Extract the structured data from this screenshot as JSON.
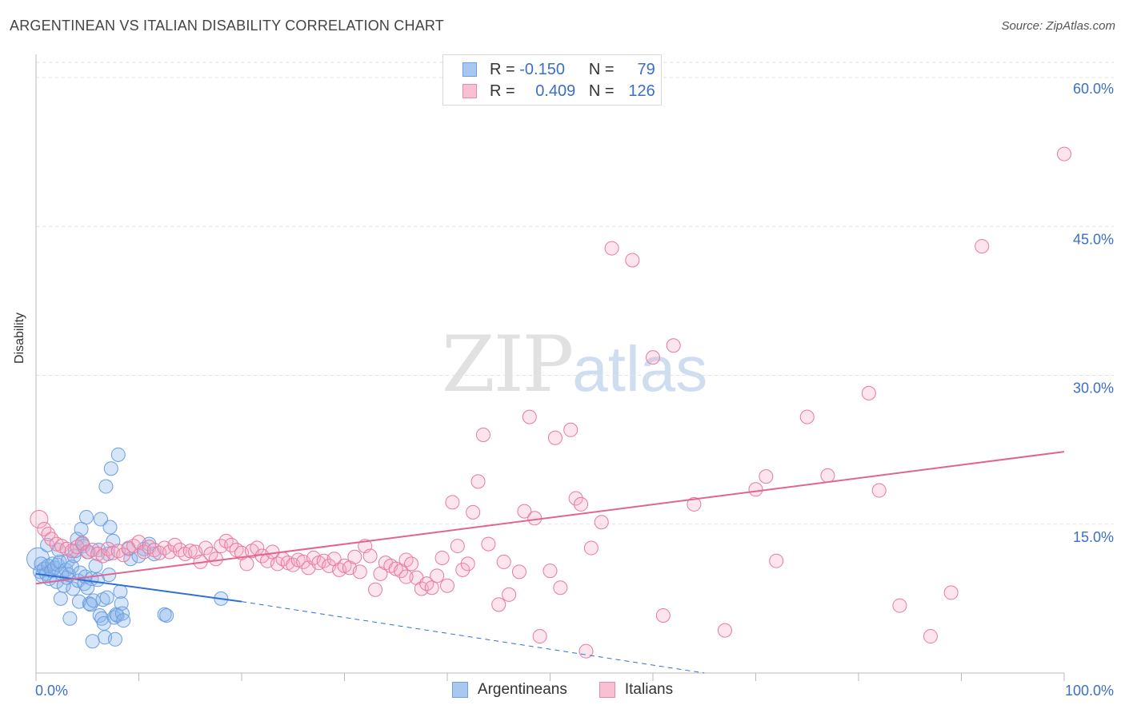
{
  "title": "ARGENTINEAN VS ITALIAN DISABILITY CORRELATION CHART",
  "source": "Source: ZipAtlas.com",
  "watermark": {
    "zip": "ZIP",
    "atlas": "atlas"
  },
  "legend_top": [
    {
      "r_label": "R =",
      "r_value": "-0.150",
      "n_label": "N =",
      "n_value": "79",
      "color": "#a9c8f0",
      "border": "#6a9fe0"
    },
    {
      "r_label": "R =",
      "r_value": "0.409",
      "n_label": "N =",
      "n_value": "126",
      "color": "#f8c0d2",
      "border": "#e88aa8"
    }
  ],
  "legend_bottom": [
    {
      "label": "Argentineans",
      "color": "#a9c8f0",
      "border": "#6a9fe0"
    },
    {
      "label": "Italians",
      "color": "#f8c0d2",
      "border": "#e88aa8"
    }
  ],
  "chart_data": {
    "type": "scatter",
    "title": "ARGENTINEAN VS ITALIAN DISABILITY CORRELATION CHART",
    "xlabel": "",
    "ylabel": "Disability",
    "xlim": [
      0,
      100
    ],
    "ylim": [
      0,
      60
    ],
    "x_tick_labels": [
      "0.0%",
      "100.0%"
    ],
    "y_tick_labels": [
      "15.0%",
      "30.0%",
      "45.0%",
      "60.0%"
    ],
    "y_ticks": [
      15,
      30,
      45,
      60
    ],
    "grid": true,
    "series": [
      {
        "name": "Argentineans",
        "color": "#6a9fe0",
        "fill": "rgba(140,180,235,0.35)",
        "trend": {
          "x0": 0,
          "y0": 10.0,
          "x1": 20,
          "y1": 7.2,
          "dash_to_x": 65,
          "dash_to_y": 0
        },
        "points": [
          [
            0.2,
            11.5
          ],
          [
            0.4,
            10.2
          ],
          [
            0.5,
            11
          ],
          [
            0.6,
            9.8
          ],
          [
            0.8,
            10.5
          ],
          [
            1,
            10
          ],
          [
            1.2,
            10.8
          ],
          [
            1.3,
            9.5
          ],
          [
            1.5,
            10.3
          ],
          [
            1.6,
            11
          ],
          [
            1.8,
            10.6
          ],
          [
            2,
            9.2
          ],
          [
            2.1,
            10.9
          ],
          [
            2.3,
            11.2
          ],
          [
            2.4,
            7.5
          ],
          [
            2.5,
            10
          ],
          [
            2.7,
            8.8
          ],
          [
            2.9,
            10.4
          ],
          [
            3,
            9.6
          ],
          [
            3.1,
            11.3
          ],
          [
            3.2,
            9.9
          ],
          [
            3.3,
            5.5
          ],
          [
            3.5,
            10.7
          ],
          [
            3.6,
            8.5
          ],
          [
            3.7,
            11.8
          ],
          [
            3.8,
            12.3
          ],
          [
            4,
            13.5
          ],
          [
            4.1,
            9.3
          ],
          [
            4.2,
            7.2
          ],
          [
            4.3,
            10.1
          ],
          [
            4.4,
            14.5
          ],
          [
            4.5,
            13
          ],
          [
            4.6,
            12.8
          ],
          [
            4.7,
            9
          ],
          [
            4.8,
            9.7
          ],
          [
            5,
            8.6
          ],
          [
            5.1,
            12.2
          ],
          [
            5.2,
            7
          ],
          [
            5.3,
            6.9
          ],
          [
            5.4,
            9.5
          ],
          [
            5.5,
            3.2
          ],
          [
            5.6,
            7.3
          ],
          [
            5.8,
            10.8
          ],
          [
            6,
            9.4
          ],
          [
            6.1,
            12.4
          ],
          [
            6.2,
            5.8
          ],
          [
            6.3,
            15.5
          ],
          [
            6.4,
            5.5
          ],
          [
            6.5,
            7.4
          ],
          [
            6.6,
            5.0
          ],
          [
            6.7,
            3.6
          ],
          [
            6.8,
            18.8
          ],
          [
            6.9,
            7.6
          ],
          [
            7,
            12
          ],
          [
            7.1,
            9.9
          ],
          [
            7.2,
            14.7
          ],
          [
            7.3,
            20.6
          ],
          [
            7.5,
            13.3
          ],
          [
            7.6,
            5.6
          ],
          [
            7.7,
            3.4
          ],
          [
            7.8,
            5.9
          ],
          [
            7.9,
            5.8
          ],
          [
            8,
            22
          ],
          [
            8.2,
            8.2
          ],
          [
            8.3,
            7
          ],
          [
            8.4,
            6
          ],
          [
            8.5,
            5.3
          ],
          [
            9,
            12.5
          ],
          [
            9.2,
            11.5
          ],
          [
            10,
            11.8
          ],
          [
            10.5,
            12.5
          ],
          [
            11,
            13
          ],
          [
            11.5,
            12
          ],
          [
            12.5,
            5.9
          ],
          [
            12.7,
            5.8
          ],
          [
            18,
            7.5
          ],
          [
            4.9,
            15.7
          ],
          [
            2.2,
            12.4
          ],
          [
            1.1,
            12.9
          ]
        ],
        "sizes": {
          "big_index": 0
        }
      },
      {
        "name": "Italians",
        "color": "#e8799e",
        "fill": "rgba(245,170,195,0.3)",
        "trend": {
          "x0": 0,
          "y0": 9.0,
          "x1": 100,
          "y1": 22.3
        },
        "points": [
          [
            0.3,
            15.5
          ],
          [
            0.8,
            14.5
          ],
          [
            1.2,
            14
          ],
          [
            1.5,
            13.5
          ],
          [
            2,
            13
          ],
          [
            2.5,
            12.8
          ],
          [
            3,
            12.5
          ],
          [
            3.5,
            12.3
          ],
          [
            4,
            12.7
          ],
          [
            4.5,
            13.1
          ],
          [
            5,
            12.2
          ],
          [
            5.5,
            12.4
          ],
          [
            6,
            12
          ],
          [
            6.5,
            11.8
          ],
          [
            7,
            12.5
          ],
          [
            7.5,
            12.1
          ],
          [
            8,
            12.3
          ],
          [
            8.5,
            11.9
          ],
          [
            9,
            12.6
          ],
          [
            9.5,
            12.8
          ],
          [
            10,
            13.2
          ],
          [
            10.5,
            12.2
          ],
          [
            11,
            12.7
          ],
          [
            11.5,
            12.4
          ],
          [
            12,
            12.1
          ],
          [
            12.5,
            12.6
          ],
          [
            13,
            12.2
          ],
          [
            13.5,
            12.9
          ],
          [
            14,
            12.4
          ],
          [
            14.5,
            12
          ],
          [
            15,
            12.3
          ],
          [
            15.5,
            12.2
          ],
          [
            16,
            11.2
          ],
          [
            16.5,
            12.6
          ],
          [
            17,
            12
          ],
          [
            17.5,
            11.5
          ],
          [
            18,
            12.8
          ],
          [
            18.5,
            13.3
          ],
          [
            19,
            12.9
          ],
          [
            19.5,
            12.4
          ],
          [
            20,
            12.1
          ],
          [
            20.5,
            11
          ],
          [
            21,
            12.3
          ],
          [
            21.5,
            12.6
          ],
          [
            22,
            11.8
          ],
          [
            22.5,
            11.3
          ],
          [
            23,
            12.2
          ],
          [
            23.5,
            11
          ],
          [
            24,
            11.5
          ],
          [
            24.5,
            11.1
          ],
          [
            25,
            10.9
          ],
          [
            25.5,
            11.4
          ],
          [
            26,
            11.2
          ],
          [
            26.5,
            10.6
          ],
          [
            27,
            11.6
          ],
          [
            27.5,
            11.1
          ],
          [
            28,
            11.3
          ],
          [
            28.5,
            10.8
          ],
          [
            29,
            11.5
          ],
          [
            29.5,
            10.4
          ],
          [
            30,
            10.8
          ],
          [
            30.5,
            10.6
          ],
          [
            31,
            11.7
          ],
          [
            31.5,
            10.2
          ],
          [
            32,
            12.8
          ],
          [
            32.5,
            11.8
          ],
          [
            33,
            8.4
          ],
          [
            33.5,
            10
          ],
          [
            34,
            11.1
          ],
          [
            34.5,
            10.8
          ],
          [
            35,
            10.5
          ],
          [
            35.5,
            10.3
          ],
          [
            36,
            11.4
          ],
          [
            36.5,
            11
          ],
          [
            37,
            9.6
          ],
          [
            37.5,
            8.5
          ],
          [
            38,
            9
          ],
          [
            38.5,
            8.6
          ],
          [
            39,
            9.8
          ],
          [
            39.5,
            11.6
          ],
          [
            40,
            8.8
          ],
          [
            40.5,
            17.2
          ],
          [
            41,
            12.8
          ],
          [
            41.5,
            10.4
          ],
          [
            42,
            11
          ],
          [
            42.5,
            16.2
          ],
          [
            43,
            19.3
          ],
          [
            43.5,
            24
          ],
          [
            44,
            13
          ],
          [
            45,
            6.9
          ],
          [
            45.5,
            11.2
          ],
          [
            46,
            7.9
          ],
          [
            47,
            10.2
          ],
          [
            47.5,
            16.3
          ],
          [
            48,
            25.8
          ],
          [
            48.5,
            15.6
          ],
          [
            49,
            3.7
          ],
          [
            50,
            10.3
          ],
          [
            50.5,
            23.7
          ],
          [
            51,
            8.6
          ],
          [
            52,
            24.5
          ],
          [
            52.5,
            17.6
          ],
          [
            53,
            17
          ],
          [
            53.5,
            2.2
          ],
          [
            54,
            12.6
          ],
          [
            55,
            15.2
          ],
          [
            56,
            42.8
          ],
          [
            58,
            41.6
          ],
          [
            60,
            31.8
          ],
          [
            61,
            5.8
          ],
          [
            64,
            17
          ],
          [
            67,
            4.3
          ],
          [
            70,
            18.5
          ],
          [
            71,
            19.8
          ],
          [
            72,
            11.3
          ],
          [
            75,
            25.8
          ],
          [
            77,
            19.9
          ],
          [
            81,
            28.2
          ],
          [
            82,
            18.4
          ],
          [
            84,
            6.8
          ],
          [
            87,
            3.7
          ],
          [
            89,
            8.1
          ],
          [
            92,
            43
          ],
          [
            100,
            52.3
          ],
          [
            36,
            9.7
          ],
          [
            62,
            33
          ]
        ]
      }
    ]
  }
}
